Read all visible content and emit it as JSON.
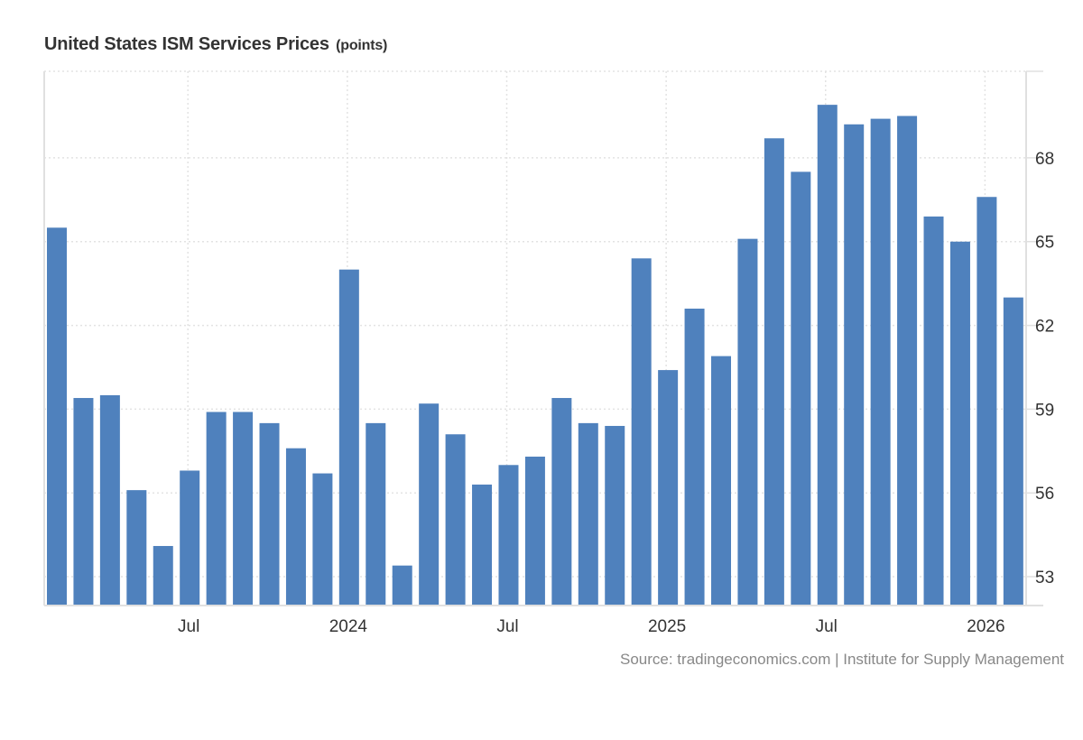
{
  "header": {
    "title": "United States ISM Services Prices",
    "unit": "(points)"
  },
  "footer": {
    "source": "Source: tradingeconomics.com | Institute for Supply Management"
  },
  "colors": {
    "bar": "#4f81bd",
    "grid": "#e3e3e3",
    "axis": "#e0e0e0",
    "text": "#333333",
    "source": "#888888"
  },
  "chart_data": {
    "type": "bar",
    "title": "United States ISM Services Prices (points)",
    "xlabel": "",
    "ylabel": "points",
    "y_axis_position": "right",
    "ylim": [
      52,
      71.1
    ],
    "yticks": [
      53,
      56,
      59,
      62,
      65,
      68
    ],
    "grid": true,
    "legend": "none",
    "categories": [
      "Feb 2023",
      "Mar 2023",
      "Apr 2023",
      "May 2023",
      "Jun 2023",
      "Jul 2023",
      "Aug 2023",
      "Sep 2023",
      "Oct 2023",
      "Nov 2023",
      "Dec 2023",
      "Jan 2024",
      "Feb 2024",
      "Mar 2024",
      "Apr 2024",
      "May 2024",
      "Jun 2024",
      "Jul 2024",
      "Aug 2024",
      "Sep 2024",
      "Oct 2024",
      "Nov 2024",
      "Dec 2024",
      "Jan 2025",
      "Feb 2025",
      "Mar 2025",
      "Apr 2025",
      "May 2025",
      "Jun 2025",
      "Jul 2025",
      "Aug 2025",
      "Sep 2025",
      "Oct 2025",
      "Nov 2025",
      "Dec 2025",
      "Jan 2026",
      "Feb 2026"
    ],
    "values": [
      65.5,
      59.4,
      59.5,
      56.1,
      54.1,
      56.8,
      58.9,
      58.9,
      58.5,
      57.6,
      56.7,
      64.0,
      58.5,
      53.4,
      59.2,
      58.1,
      56.3,
      57.0,
      57.3,
      59.4,
      58.5,
      58.4,
      64.4,
      60.4,
      62.6,
      60.9,
      65.1,
      68.7,
      67.5,
      69.9,
      69.2,
      69.4,
      69.5,
      65.9,
      65.0,
      66.6,
      63.0
    ],
    "xticks": [
      {
        "label": "Jul",
        "category": "Jul 2023"
      },
      {
        "label": "2024",
        "category": "Jan 2024"
      },
      {
        "label": "Jul",
        "category": "Jul 2024"
      },
      {
        "label": "2025",
        "category": "Jan 2025"
      },
      {
        "label": "Jul",
        "category": "Jul 2025"
      },
      {
        "label": "2026",
        "category": "Jan 2026"
      }
    ]
  }
}
